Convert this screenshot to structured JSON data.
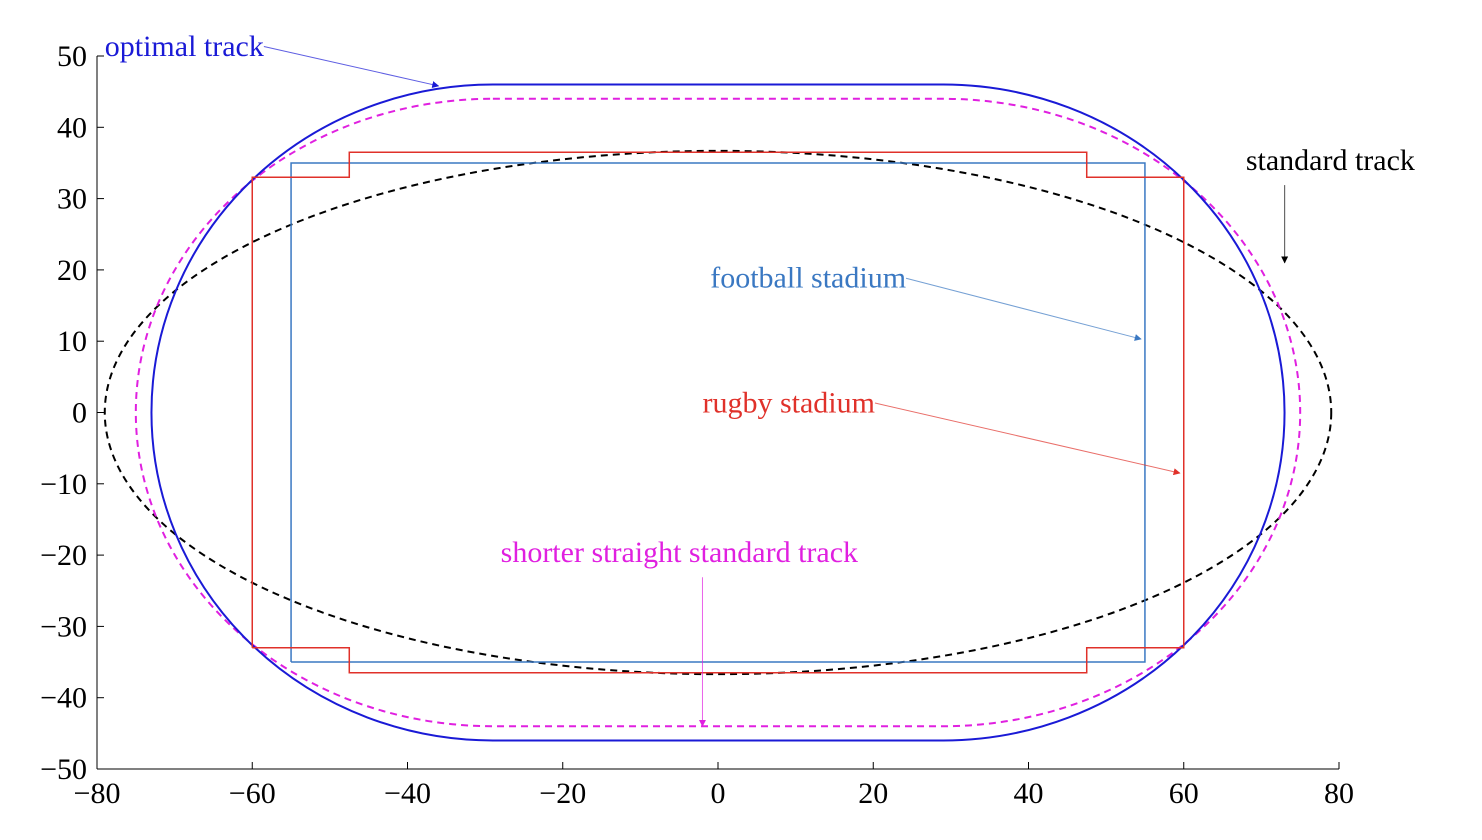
{
  "chart_data": {
    "type": "line",
    "title": "",
    "xlabel": "",
    "ylabel": "",
    "xlim": [
      -80,
      80
    ],
    "ylim": [
      -50,
      50
    ],
    "xticks": [
      -80,
      -60,
      -40,
      -20,
      0,
      20,
      40,
      60,
      80
    ],
    "yticks": [
      -50,
      -40,
      -30,
      -20,
      -10,
      0,
      10,
      20,
      30,
      40,
      50
    ],
    "xtick_labels": [
      "−80",
      "−60",
      "−40",
      "−20",
      "0",
      "20",
      "40",
      "60",
      "80"
    ],
    "ytick_labels": [
      "−50",
      "−40",
      "−30",
      "−20",
      "−10",
      "0",
      "10",
      "20",
      "30",
      "40",
      "50"
    ],
    "grid": false,
    "legend": "none",
    "series": [
      {
        "name": "standard track",
        "shape": "ellipse",
        "color": "#000000",
        "line_style": "dashed",
        "center": [
          0,
          0
        ],
        "semi_axes": [
          79,
          36.7
        ]
      },
      {
        "name": "shorter straight standard track",
        "shape": "stadium",
        "color": "#e020e0",
        "line_style": "dashed",
        "straight_x": [
          -29,
          29
        ],
        "y_extent": 44,
        "curve_x_extent": 75
      },
      {
        "name": "optimal track",
        "shape": "stadium",
        "color": "#1a1ad6",
        "line_style": "solid",
        "straight_x": [
          -29,
          29
        ],
        "y_extent": 46,
        "curve_x_extent": 73
      },
      {
        "name": "football stadium",
        "shape": "polyline",
        "color": "#3a78c2",
        "line_style": "solid",
        "x": [
          -55,
          -55,
          -47.5,
          -47.5,
          47.5,
          47.5,
          55,
          55,
          47.5,
          47.5,
          -47.5,
          -47.5,
          -55
        ],
        "y": [
          -35,
          35,
          35,
          35,
          35,
          35,
          35,
          -35,
          -35,
          -35,
          -35,
          -35,
          -35
        ]
      },
      {
        "name": "rugby stadium",
        "shape": "polyline",
        "color": "#e0312a",
        "line_style": "solid",
        "x": [
          -60,
          -60,
          -47.5,
          -47.5,
          47.5,
          47.5,
          60,
          60,
          47.5,
          47.5,
          -47.5,
          -47.5,
          -60
        ],
        "y": [
          -33,
          33,
          33,
          36.5,
          36.5,
          33,
          33,
          -33,
          -33,
          -36.5,
          -36.5,
          -33,
          -33
        ]
      }
    ],
    "annotations": [
      {
        "text": "optimal track",
        "color": "#1a1ad6",
        "text_at": [
          -79,
          50
        ],
        "arrow_to": [
          -36,
          45.8
        ]
      },
      {
        "text": "standard track",
        "color": "#000000",
        "text_at": [
          68,
          34
        ],
        "arrow_to": [
          73,
          21
        ]
      },
      {
        "text": "football stadium",
        "color": "#3a78c2",
        "text_at": [
          -1,
          17.5
        ],
        "arrow_to": [
          54.5,
          10.3
        ]
      },
      {
        "text": "rugby stadium",
        "color": "#e0312a",
        "text_at": [
          -2,
          0
        ],
        "arrow_to": [
          59.5,
          -8.5
        ]
      },
      {
        "text": "shorter straight standard track",
        "color": "#e020e0",
        "text_at": [
          -28,
          -21
        ],
        "arrow_to": [
          -2,
          -44
        ]
      }
    ]
  }
}
